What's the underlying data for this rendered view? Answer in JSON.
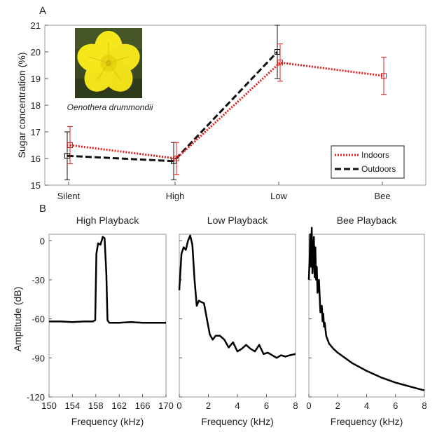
{
  "panel_labels": {
    "a": "A",
    "b": "B"
  },
  "flower_caption": "Oenothera drummondii",
  "colors": {
    "indoors": "#e51d1d",
    "outdoors": "#111111",
    "flower_petal": "#f4e81a",
    "flower_bg": "#3b4a22"
  },
  "chart_data": [
    {
      "type": "line",
      "categories": [
        "Silent",
        "High",
        "Low",
        "Bee"
      ],
      "ylabel": "Sugar concentration (%)",
      "xlabel": "",
      "ylim": [
        15,
        21
      ],
      "yticks": [
        15,
        16,
        17,
        18,
        19,
        20,
        21
      ],
      "legend": "bottom-right",
      "series": [
        {
          "name": "Indoors",
          "values": [
            16.5,
            16.0,
            19.6,
            19.1
          ],
          "err": [
            0.7,
            0.6,
            0.7,
            0.7
          ],
          "style": "dotted",
          "color": "#e51d1d"
        },
        {
          "name": "Outdoors",
          "values": [
            16.1,
            15.9,
            20.0,
            null
          ],
          "err": [
            0.9,
            0.7,
            1.0,
            null
          ],
          "style": "dashed",
          "color": "#111111"
        }
      ]
    },
    {
      "type": "line",
      "title": "High Playback",
      "xlabel": "Frequency (kHz)",
      "ylabel": "Amplitude (dB)",
      "xlim": [
        150,
        170
      ],
      "ylim": [
        -120,
        5
      ],
      "xticks": [
        150,
        154,
        158,
        162,
        166,
        170
      ],
      "yticks": [
        -120,
        -90,
        -60,
        -30,
        0
      ],
      "x": [
        150,
        152,
        154,
        156,
        157.5,
        157.9,
        158.1,
        158.4,
        158.8,
        159.2,
        159.5,
        159.8,
        160.0,
        160.3,
        162,
        164,
        166,
        168,
        170
      ],
      "y": [
        -62,
        -62,
        -62.5,
        -62,
        -62,
        -61,
        -10,
        -2,
        -3,
        3,
        2,
        -25,
        -61,
        -63,
        -63,
        -62.5,
        -63,
        -63,
        -63
      ]
    },
    {
      "type": "line",
      "title": "Low Playback",
      "xlabel": "Frequency (kHz)",
      "xlim": [
        0,
        8
      ],
      "ylim": [
        -120,
        5
      ],
      "xticks": [
        0,
        2,
        4,
        6,
        8
      ],
      "x": [
        0,
        0.15,
        0.3,
        0.45,
        0.6,
        0.75,
        0.9,
        1.05,
        1.2,
        1.35,
        1.5,
        1.7,
        1.9,
        2.1,
        2.3,
        2.5,
        2.8,
        3.1,
        3.4,
        3.7,
        4.0,
        4.3,
        4.6,
        4.9,
        5.2,
        5.5,
        5.8,
        6.1,
        6.4,
        6.7,
        7.0,
        7.3,
        7.6,
        8.0
      ],
      "y": [
        -38,
        -10,
        -5,
        -7,
        0,
        4,
        -3,
        -30,
        -50,
        -46,
        -47,
        -48,
        -60,
        -72,
        -76,
        -73,
        -73,
        -76,
        -82,
        -78,
        -85,
        -83,
        -80,
        -83,
        -85,
        -80,
        -87,
        -86,
        -88,
        -90,
        -88,
        -89,
        -88,
        -87
      ]
    },
    {
      "type": "line",
      "title": "Bee Playback",
      "xlabel": "Frequency (kHz)",
      "xlim": [
        0,
        8
      ],
      "ylim": [
        -120,
        5
      ],
      "xticks": [
        0,
        2,
        4,
        6,
        8
      ],
      "x": [
        0,
        0.05,
        0.1,
        0.15,
        0.2,
        0.25,
        0.3,
        0.35,
        0.4,
        0.45,
        0.5,
        0.55,
        0.6,
        0.7,
        0.8,
        0.9,
        0.95,
        1.0,
        1.05,
        1.1,
        1.2,
        1.4,
        1.7,
        2.0,
        2.5,
        3.0,
        3.5,
        4.0,
        5.0,
        6.0,
        7.0,
        8.0
      ],
      "y": [
        -30,
        -15,
        5,
        -20,
        10,
        -25,
        -10,
        3,
        -28,
        -5,
        -30,
        -20,
        -40,
        -30,
        -55,
        -50,
        -62,
        -56,
        -66,
        -63,
        -73,
        -79,
        -83,
        -86,
        -90,
        -94,
        -97,
        -100,
        -105,
        -109,
        -112,
        -115
      ]
    }
  ]
}
